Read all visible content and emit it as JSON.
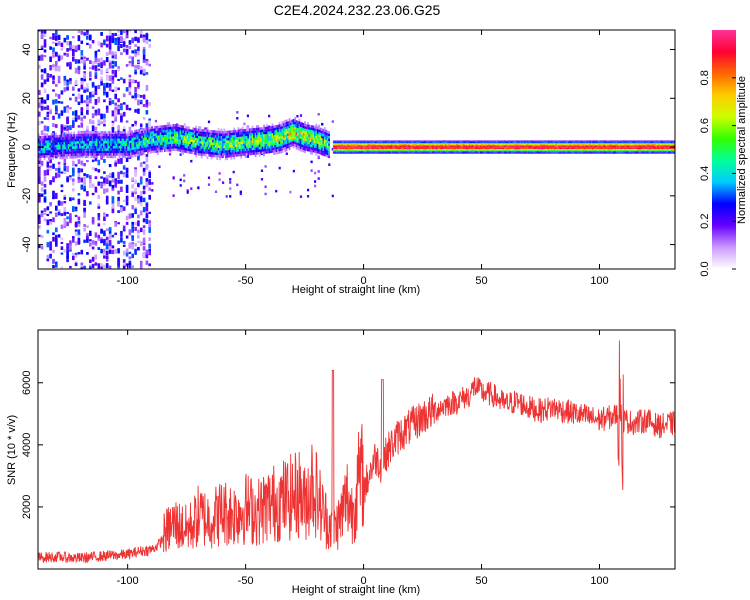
{
  "title": "C2E4.2024.232.23.06.G25",
  "chart_data": [
    {
      "type": "heatmap",
      "xlabel": "Height of straight line (km)",
      "ylabel": "Frequency (Hz)",
      "xlim": [
        -138,
        132
      ],
      "ylim": [
        -50,
        48
      ],
      "xticks": [
        -100,
        -50,
        0,
        50,
        100
      ],
      "yticks": [
        -40,
        -20,
        0,
        20,
        40
      ],
      "colorbar": {
        "label": "Normalized spectral amplitude",
        "range": [
          0,
          1
        ],
        "ticks": [
          0.0,
          0.2,
          0.4,
          0.6,
          0.8
        ],
        "colormap": [
          "#ffffff",
          "#cc99ff",
          "#6600ff",
          "#0000ff",
          "#00ccff",
          "#00ff99",
          "#33ff00",
          "#ccff00",
          "#ffcc00",
          "#ff6600",
          "#ff0033",
          "#ff3399"
        ]
      },
      "line_centered_band": {
        "frequency_hz": 0,
        "from_km": -13,
        "to_km": 132,
        "amplitude": 1.0
      },
      "scatter_region": {
        "from_km": -138,
        "to_km": -90,
        "frequency_range_hz": [
          -50,
          48
        ],
        "amplitude": 0.25
      },
      "wandering_band": {
        "x": [
          -138,
          -120,
          -100,
          -90,
          -80,
          -70,
          -60,
          -50,
          -40,
          -35,
          -30,
          -25,
          -20,
          -15
        ],
        "center_hz": [
          0,
          1,
          1,
          3,
          4,
          2,
          1,
          2,
          3,
          4,
          6,
          4,
          3,
          1
        ],
        "amplitude": [
          0.35,
          0.35,
          0.4,
          0.45,
          0.5,
          0.5,
          0.5,
          0.55,
          0.6,
          0.6,
          0.65,
          0.6,
          0.55,
          0.5
        ]
      }
    },
    {
      "type": "line",
      "xlabel": "Height of straight line (km)",
      "ylabel": "SNR (10 * v/v)",
      "xlim": [
        -138,
        132
      ],
      "ylim": [
        0,
        7700
      ],
      "xticks": [
        -100,
        -50,
        0,
        50,
        100
      ],
      "yticks": [
        2000,
        4000,
        6000
      ],
      "line_color": "#ee3333",
      "series": [
        {
          "x": [
            -138,
            -130,
            -120,
            -110,
            -100,
            -95,
            -90,
            -87,
            -85,
            -82,
            -80,
            -77,
            -75,
            -72,
            -70,
            -65,
            -60,
            -55,
            -50,
            -45,
            -40,
            -35,
            -30,
            -27,
            -25,
            -22,
            -20,
            -18,
            -15,
            -12,
            -10,
            -7,
            -5,
            -2,
            0,
            3,
            5,
            8,
            10,
            12,
            15,
            20,
            25,
            30,
            35,
            40,
            42,
            45,
            47,
            50,
            55,
            60,
            65,
            70,
            75,
            80,
            85,
            90,
            95,
            100,
            105,
            108,
            110,
            115,
            120,
            125,
            132
          ],
          "values": [
            300,
            320,
            280,
            350,
            400,
            500,
            550,
            700,
            900,
            1100,
            1200,
            1100,
            1050,
            1200,
            1400,
            1300,
            1500,
            1450,
            1600,
            1500,
            1700,
            1800,
            1900,
            2000,
            1700,
            2300,
            2000,
            1600,
            1200,
            1100,
            1300,
            1900,
            1500,
            2300,
            2500,
            3200,
            3600,
            3300,
            3800,
            4000,
            4300,
            4600,
            4900,
            5100,
            5300,
            5400,
            5500,
            5600,
            5900,
            5700,
            5600,
            5300,
            5400,
            5200,
            5100,
            5200,
            5100,
            5000,
            4900,
            4800,
            4900,
            5000,
            4800,
            4700,
            4800,
            4600,
            4700
          ]
        }
      ]
    }
  ]
}
